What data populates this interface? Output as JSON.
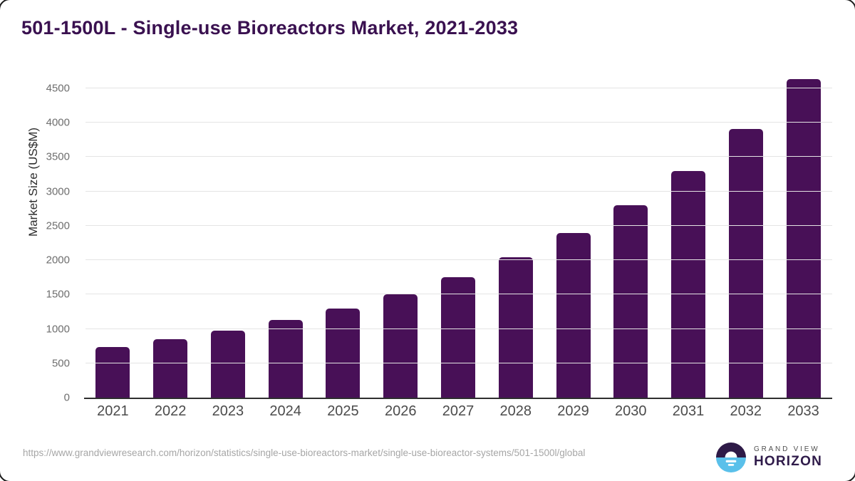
{
  "title": "501-1500L - Single-use Bioreactors Market, 2021-2033",
  "chart_data": {
    "type": "bar",
    "title": "501-1500L - Single-use Bioreactors Market, 2021-2033",
    "categories": [
      "2021",
      "2022",
      "2023",
      "2024",
      "2025",
      "2026",
      "2027",
      "2028",
      "2029",
      "2030",
      "2031",
      "2032",
      "2033"
    ],
    "values": [
      740,
      850,
      975,
      1130,
      1300,
      1500,
      1750,
      2040,
      2400,
      2800,
      3300,
      3910,
      4630
    ],
    "xlabel": "",
    "ylabel": "Market Size (US$M)",
    "ylim": [
      0,
      4500
    ],
    "ytick_step": 500,
    "grid": true,
    "legend": false,
    "bar_color": "#481057"
  },
  "colors": {
    "title": "#3a1150",
    "bar": "#481057",
    "gridline": "#e4e4e4",
    "axis_line": "#2f2f2f",
    "tick_label": "#6e6e6e",
    "logo_dark": "#2e1a47",
    "logo_blue": "#5ac0ea"
  },
  "footer": {
    "source_url": "https://www.grandviewresearch.com/horizon/statistics/single-use-bioreactors-market/single-use-bioreactor-systems/501-1500l/global",
    "logo": {
      "icon": "grand-view-horizon-sunrise-icon",
      "top_text": "GRAND VIEW",
      "bottom_text": "HORIZON"
    }
  }
}
